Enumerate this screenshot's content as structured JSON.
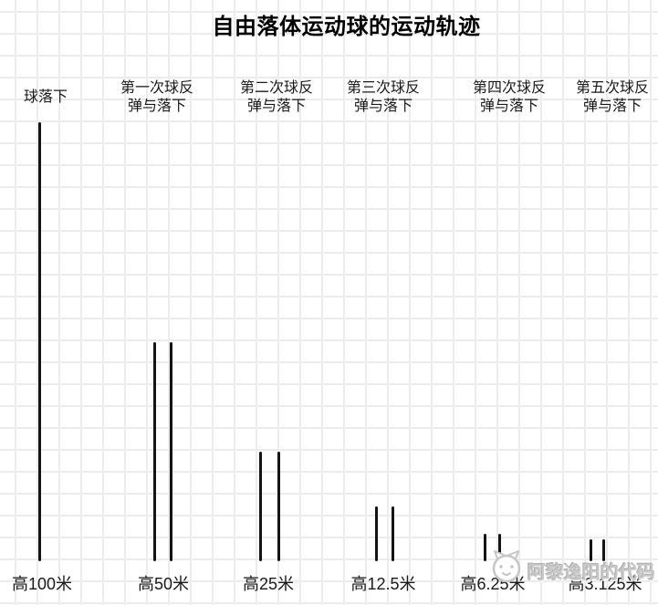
{
  "chart_data": {
    "type": "bar",
    "title": "自由落体运动球的运动轨迹",
    "categories": [
      "球落下",
      "第一次球反弹与落下",
      "第二次球反弹与落下",
      "第三次球反弹与落下",
      "第四次球反弹与落下",
      "第五次球反弹与落下"
    ],
    "values": [
      100,
      50,
      25,
      12.5,
      6.25,
      3.125
    ],
    "value_labels": [
      "高100米",
      "高50米",
      "高25米",
      "高12.5米",
      "高6.25米",
      "高3.125米"
    ],
    "unit": "米",
    "lines_per_group": [
      1,
      2,
      2,
      2,
      2,
      2
    ],
    "xlabel": "",
    "ylabel": "",
    "ylim": [
      0,
      100
    ],
    "grid": true,
    "legend": false
  },
  "watermark": {
    "text": "阿黎逸阳的代码",
    "icon": "cat-face"
  },
  "colors": {
    "line": "#141414",
    "grid": "#ececec",
    "background": "#ffffff",
    "title": "#000000",
    "label": "#1a1a1a",
    "watermark": "#c9c9c9"
  }
}
